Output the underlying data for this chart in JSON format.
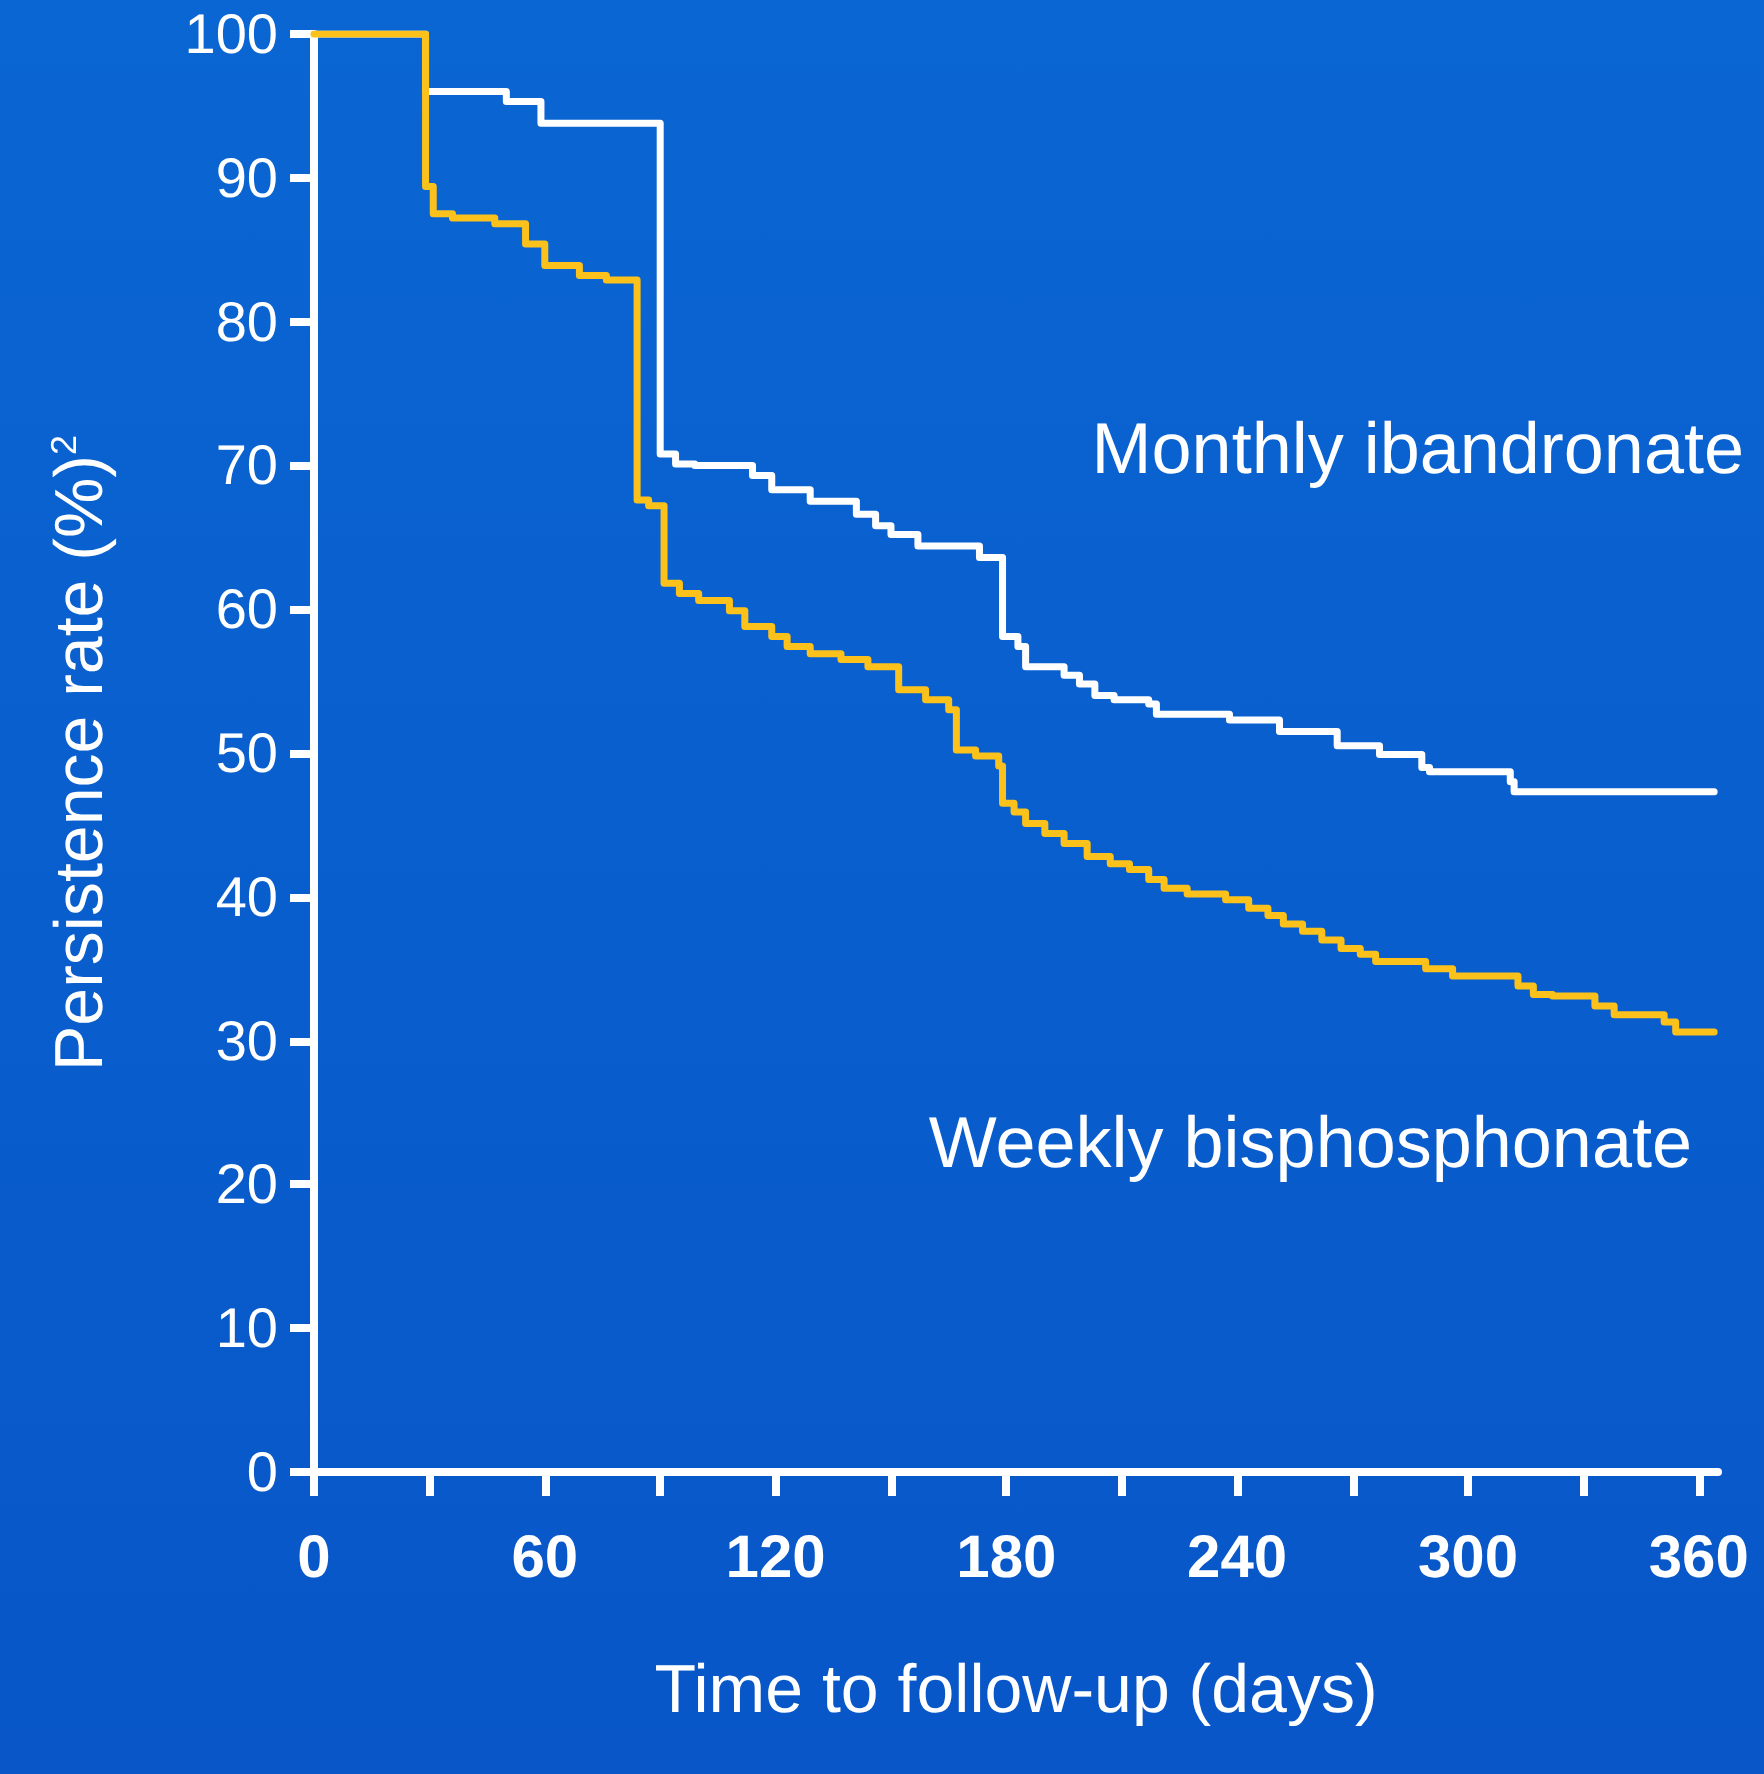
{
  "chart_data": {
    "type": "step",
    "xlabel": "Time to follow-up (days)",
    "ylabel": "Persistence rate (%)$^{2}$",
    "xlim": [
      0,
      365
    ],
    "ylim": [
      0,
      100
    ],
    "xticks": [
      0,
      {
        "value": 30,
        "label": null
      },
      60,
      {
        "value": 90,
        "label": null
      },
      120,
      {
        "value": 150,
        "label": null
      },
      180,
      {
        "value": 210,
        "label": null
      },
      240,
      {
        "value": 270,
        "label": null
      },
      300,
      {
        "value": 330,
        "label": null
      },
      360
    ],
    "yticks": [
      0,
      10,
      20,
      30,
      40,
      50,
      60,
      70,
      80,
      90,
      100
    ],
    "grid": false,
    "legend": false,
    "marker": "none",
    "line_style": "solid",
    "series": [
      {
        "name": "Monthly ibandronate",
        "color": "#ffffff",
        "x": [
          0,
          29,
          50,
          59,
          90,
          94,
          99,
          114,
          119,
          129,
          141,
          146,
          150,
          157,
          173,
          179,
          183,
          185,
          195,
          199,
          203,
          208,
          217,
          219,
          238,
          251,
          266,
          277,
          288,
          290,
          311,
          312,
          364
        ],
        "values": [
          100,
          96.0,
          95.3,
          93.8,
          70.8,
          70.1,
          70.0,
          69.3,
          68.3,
          67.5,
          66.6,
          65.8,
          65.2,
          64.4,
          63.6,
          58.1,
          57.4,
          56.0,
          55.4,
          54.8,
          54.0,
          53.7,
          53.4,
          52.7,
          52.3,
          51.5,
          50.5,
          49.9,
          49.0,
          48.7,
          48.0,
          47.3,
          47.3
        ]
      },
      {
        "name": "Weekly bisphosphonate",
        "color": "#fcc21b",
        "x": [
          0,
          29,
          31,
          36,
          47,
          55,
          60,
          69,
          76,
          84,
          87,
          91,
          95,
          100,
          108,
          112,
          119,
          123,
          129,
          137,
          144,
          152,
          159,
          165,
          167,
          172,
          178,
          179,
          182,
          185,
          190,
          195,
          201,
          207,
          212,
          217,
          221,
          227,
          237,
          243,
          248,
          252,
          257,
          262,
          267,
          272,
          276,
          289,
          296,
          313,
          317,
          322,
          333,
          338,
          351,
          354,
          364
        ],
        "values": [
          100,
          89.4,
          87.5,
          87.2,
          86.8,
          85.4,
          83.9,
          83.2,
          82.9,
          67.6,
          67.2,
          61.8,
          61.1,
          60.6,
          59.9,
          58.8,
          58.1,
          57.4,
          56.9,
          56.5,
          56.0,
          54.4,
          53.7,
          53.0,
          50.2,
          49.8,
          49.1,
          46.5,
          45.9,
          45.1,
          44.4,
          43.7,
          42.8,
          42.3,
          41.9,
          41.2,
          40.6,
          40.2,
          39.8,
          39.2,
          38.7,
          38.1,
          37.6,
          37.0,
          36.4,
          36.0,
          35.5,
          35.0,
          34.5,
          33.8,
          33.2,
          33.1,
          32.4,
          31.8,
          31.3,
          30.6,
          30.6
        ]
      }
    ]
  }
}
